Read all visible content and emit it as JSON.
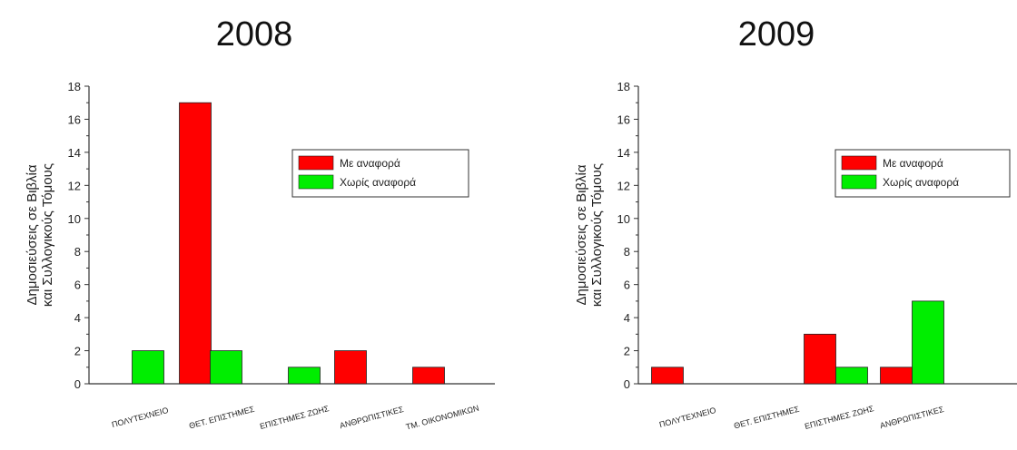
{
  "chart_data": [
    {
      "type": "bar",
      "title": "2008",
      "ylabel_lines": [
        "Δημοσιεύσεις σε Βιβλία",
        "και Συλλογικούς Τόμους"
      ],
      "xlabel": "",
      "ylim": [
        0,
        18
      ],
      "yticks": [
        0,
        2,
        4,
        6,
        8,
        10,
        12,
        14,
        16,
        18
      ],
      "categories": [
        "ΠΟΛΥΤΕΧΝΕΙΟ",
        "ΘΕΤ. ΕΠΙΣΤΗΜΕΣ",
        "ΕΠΙΣΤΗΜΕΣ ΖΩΗΣ",
        "ΑΝΘΡΩΠΙΣΤΙΚΕΣ",
        "ΤΜ. ΟΙΚΟΝΟΜΙΚΩΝ"
      ],
      "series": [
        {
          "name": "Με αναφορά",
          "color": "#ff0000",
          "values": [
            0,
            17,
            0,
            2,
            1
          ]
        },
        {
          "name": "Χωρίς αναφορά",
          "color": "#00ee00",
          "values": [
            2,
            2,
            1,
            0,
            0
          ]
        }
      ],
      "legend": "top-right",
      "grid": false
    },
    {
      "type": "bar",
      "title": "2009",
      "ylabel_lines": [
        "Δημοσιεύσεις σε Βιβλία",
        "και Συλλογικούς Τόμους"
      ],
      "xlabel": "",
      "ylim": [
        0,
        18
      ],
      "yticks": [
        0,
        2,
        4,
        6,
        8,
        10,
        12,
        14,
        16,
        18
      ],
      "categories": [
        "ΠΟΛΥΤΕΧΝΕΙΟ",
        "ΘΕΤ. ΕΠΙΣΤΗΜΕΣ",
        "ΕΠΙΣΤΗΜΕΣ ΖΩΗΣ",
        "ΑΝΘΡΩΠΙΣΤΙΚΕΣ"
      ],
      "series": [
        {
          "name": "Με αναφορά",
          "color": "#ff0000",
          "values": [
            1,
            0,
            3,
            1
          ]
        },
        {
          "name": "Χωρίς αναφορά",
          "color": "#00ee00",
          "values": [
            0,
            0,
            1,
            5
          ]
        }
      ],
      "legend": "top-right",
      "grid": false
    }
  ]
}
